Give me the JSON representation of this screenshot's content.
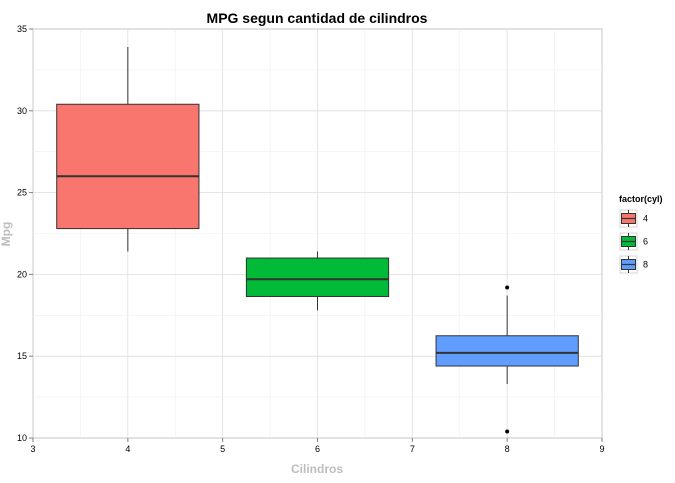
{
  "chart_data": {
    "type": "boxplot",
    "title": "MPG segun cantidad de cilindros",
    "xlabel": "Cilindros",
    "ylabel": "Mpg",
    "xlim": [
      3,
      9
    ],
    "ylim": [
      10,
      35
    ],
    "x_ticks": [
      "3",
      "4",
      "5",
      "6",
      "7",
      "8",
      "9"
    ],
    "y_ticks": [
      "10",
      "15",
      "20",
      "25",
      "30",
      "35"
    ],
    "grid": true,
    "legend": {
      "title": "factor(cyl)",
      "placement": "right",
      "entries": [
        {
          "label": "4",
          "color": "#F8766D"
        },
        {
          "label": "6",
          "color": "#00BA38"
        },
        {
          "label": "8",
          "color": "#619CFF"
        }
      ]
    },
    "boxes": [
      {
        "x": 4,
        "lower_whisker": 21.4,
        "q1": 22.8,
        "median": 26.0,
        "q3": 30.4,
        "upper_whisker": 33.9,
        "outliers": [],
        "color": "#F8766D"
      },
      {
        "x": 6,
        "lower_whisker": 17.8,
        "q1": 18.65,
        "median": 19.7,
        "q3": 21.0,
        "upper_whisker": 21.4,
        "outliers": [],
        "color": "#00BA38"
      },
      {
        "x": 8,
        "lower_whisker": 13.3,
        "q1": 14.4,
        "median": 15.2,
        "q3": 16.25,
        "upper_whisker": 18.7,
        "outliers": [
          10.4,
          19.2
        ],
        "color": "#619CFF"
      }
    ]
  }
}
